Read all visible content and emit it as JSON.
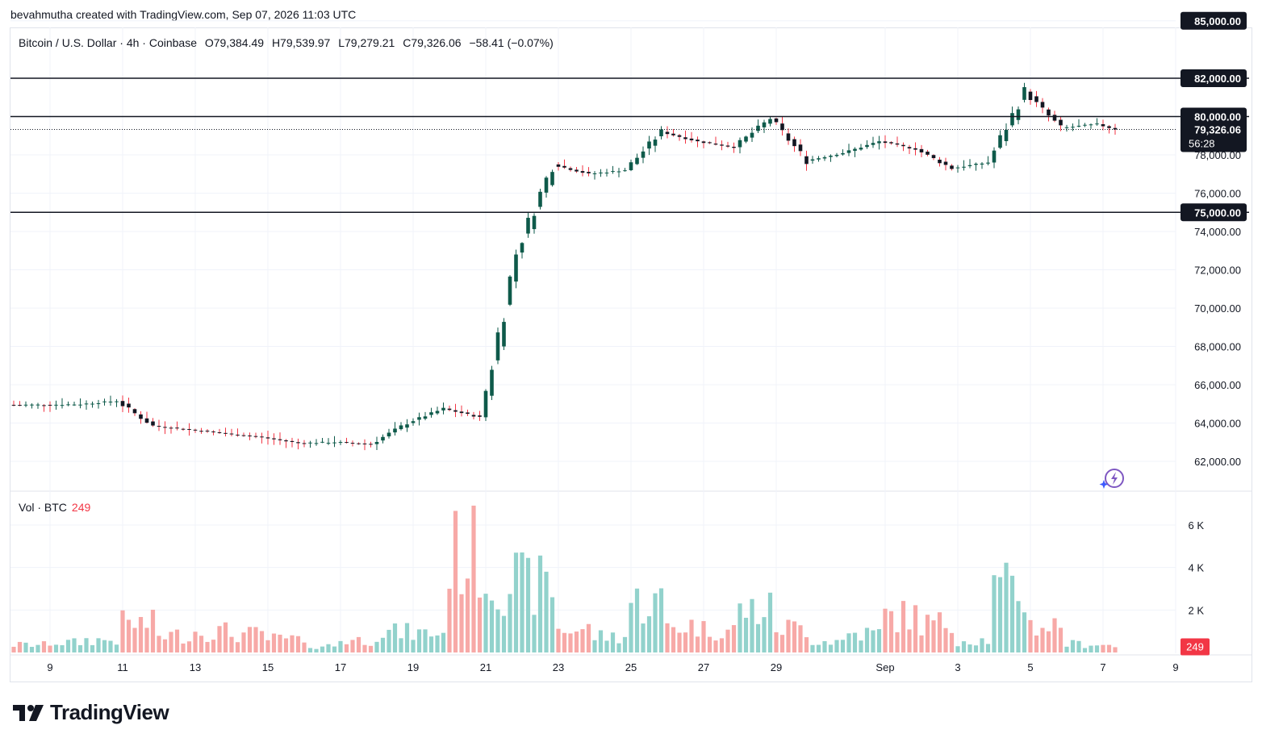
{
  "header": {
    "caption": "bevahmutha created with TradingView.com, Sep 07, 2026 11:03 UTC"
  },
  "legend": {
    "symbol": "Bitcoin / U.S. Dollar · 4h · Coinbase",
    "open": "O79,384.49",
    "high": "H79,539.97",
    "low": "L79,279.21",
    "close": "C79,326.06",
    "change": "−58.41 (−0.07%)"
  },
  "volume_legend": {
    "label": "Vol · BTC",
    "value": "249"
  },
  "price_tag": {
    "price": "79,326.06",
    "countdown": "56:28"
  },
  "brand": {
    "name": "TradingView"
  },
  "colors": {
    "up": "#089981",
    "down": "#f23645",
    "candle_up_body": "#0e5a4a",
    "candle_down_body": "#131722",
    "volume_up": "#92d2cc",
    "volume_down": "#f7a9a7",
    "grid": "#f0f3fa",
    "level_line": "#131722"
  },
  "chart_data": {
    "type": "candlestick",
    "interval": "4h",
    "y_axis": {
      "range": [
        60600,
        86000
      ],
      "ticks": [
        "62,000.00",
        "64,000.00",
        "66,000.00",
        "68,000.00",
        "70,000.00",
        "72,000.00",
        "74,000.00",
        "76,000.00",
        "78,000.00"
      ],
      "tick_values": [
        62000,
        64000,
        66000,
        68000,
        70000,
        72000,
        74000,
        76000,
        78000
      ]
    },
    "horizontal_levels": [
      {
        "value": 85000,
        "label": "85,000.00",
        "line": false
      },
      {
        "value": 82000,
        "label": "82,000.00",
        "line": true
      },
      {
        "value": 80000,
        "label": "80,000.00",
        "line": true
      },
      {
        "value": 75000,
        "label": "75,000.00",
        "line": true
      }
    ],
    "last_price": 79326.06,
    "volume_axis": {
      "range": [
        0,
        7000
      ],
      "ticks": [
        "2 K",
        "4 K",
        "6 K"
      ],
      "tick_values": [
        2000,
        4000,
        6000
      ],
      "last_volume": 249
    },
    "x_axis": {
      "labels": [
        "9",
        "11",
        "13",
        "15",
        "17",
        "19",
        "21",
        "23",
        "25",
        "27",
        "29",
        "Sep",
        "3",
        "5",
        "7",
        "9"
      ],
      "label_dates": [
        "2026-08-09",
        "2026-08-11",
        "2026-08-13",
        "2026-08-15",
        "2026-08-17",
        "2026-08-19",
        "2026-08-21",
        "2026-08-23",
        "2026-08-25",
        "2026-08-27",
        "2026-08-29",
        "2026-09-01",
        "2026-09-03",
        "2026-09-05",
        "2026-09-07",
        "2026-09-09"
      ]
    },
    "start_date": "2026-08-08",
    "daily_closes": [
      {
        "date": "2026-08-08",
        "close": 64950,
        "volume": 400
      },
      {
        "date": "2026-08-09",
        "close": 64980,
        "volume": 520
      },
      {
        "date": "2026-08-10",
        "close": 65150,
        "volume": 650
      },
      {
        "date": "2026-08-11",
        "close": 63850,
        "volume": 1500
      },
      {
        "date": "2026-08-12",
        "close": 63650,
        "volume": 900
      },
      {
        "date": "2026-08-13",
        "close": 63450,
        "volume": 1100
      },
      {
        "date": "2026-08-14",
        "close": 63250,
        "volume": 950
      },
      {
        "date": "2026-08-15",
        "close": 62950,
        "volume": 700
      },
      {
        "date": "2026-08-16",
        "close": 63000,
        "volume": 350
      },
      {
        "date": "2026-08-17",
        "close": 62900,
        "volume": 650
      },
      {
        "date": "2026-08-18",
        "close": 64000,
        "volume": 1050
      },
      {
        "date": "2026-08-19",
        "close": 64750,
        "volume": 1000
      },
      {
        "date": "2026-08-20",
        "close": 64300,
        "volume": 5200
      },
      {
        "date": "2026-08-21",
        "close": 72900,
        "volume": 3800
      },
      {
        "date": "2026-08-22",
        "close": 77500,
        "volume": 3500
      },
      {
        "date": "2026-08-23",
        "close": 77000,
        "volume": 1200
      },
      {
        "date": "2026-08-24",
        "close": 77200,
        "volume": 850
      },
      {
        "date": "2026-08-25",
        "close": 79200,
        "volume": 2600
      },
      {
        "date": "2026-08-26",
        "close": 78700,
        "volume": 1400
      },
      {
        "date": "2026-08-27",
        "close": 78400,
        "volume": 1200
      },
      {
        "date": "2026-08-28",
        "close": 79900,
        "volume": 2200
      },
      {
        "date": "2026-08-29",
        "close": 77700,
        "volume": 1300
      },
      {
        "date": "2026-08-30",
        "close": 78100,
        "volume": 600
      },
      {
        "date": "2026-08-31",
        "close": 78700,
        "volume": 1000
      },
      {
        "date": "2026-09-01",
        "close": 78300,
        "volume": 1900
      },
      {
        "date": "2026-09-02",
        "close": 77300,
        "volume": 1500
      },
      {
        "date": "2026-09-03",
        "close": 77600,
        "volume": 650
      },
      {
        "date": "2026-09-04",
        "close": 81300,
        "volume": 3200
      },
      {
        "date": "2026-09-05",
        "close": 79400,
        "volume": 1400
      },
      {
        "date": "2026-09-06",
        "close": 79600,
        "volume": 450
      },
      {
        "date": "2026-09-07",
        "close": 79326,
        "volume": 400
      }
    ]
  }
}
